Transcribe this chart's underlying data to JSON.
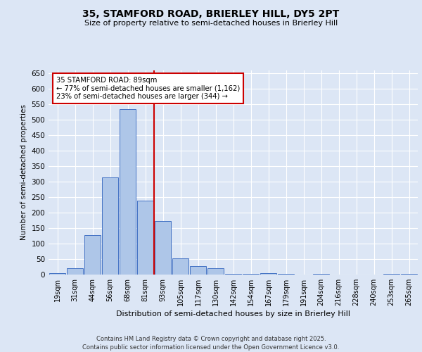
{
  "title1": "35, STAMFORD ROAD, BRIERLEY HILL, DY5 2PT",
  "title2": "Size of property relative to semi-detached houses in Brierley Hill",
  "xlabel": "Distribution of semi-detached houses by size in Brierley Hill",
  "ylabel": "Number of semi-detached properties",
  "footer": "Contains HM Land Registry data © Crown copyright and database right 2025.\nContains public sector information licensed under the Open Government Licence v3.0.",
  "categories": [
    "19sqm",
    "31sqm",
    "44sqm",
    "56sqm",
    "68sqm",
    "81sqm",
    "93sqm",
    "105sqm",
    "117sqm",
    "130sqm",
    "142sqm",
    "154sqm",
    "167sqm",
    "179sqm",
    "191sqm",
    "204sqm",
    "216sqm",
    "228sqm",
    "240sqm",
    "253sqm",
    "265sqm"
  ],
  "values": [
    5,
    20,
    128,
    315,
    535,
    240,
    172,
    52,
    28,
    20,
    3,
    3,
    5,
    2,
    0,
    3,
    0,
    0,
    0,
    2,
    2
  ],
  "bar_color": "#aec6e8",
  "bar_edge_color": "#4472c4",
  "vline_color": "#cc0000",
  "annotation_text": "35 STAMFORD ROAD: 89sqm\n← 77% of semi-detached houses are smaller (1,162)\n23% of semi-detached houses are larger (344) →",
  "annotation_box_color": "#ffffff",
  "annotation_box_edge": "#cc0000",
  "ylim": [
    0,
    660
  ],
  "yticks": [
    0,
    50,
    100,
    150,
    200,
    250,
    300,
    350,
    400,
    450,
    500,
    550,
    600,
    650
  ],
  "background_color": "#dce6f5",
  "plot_background": "#dce6f5",
  "grid_color": "#ffffff"
}
